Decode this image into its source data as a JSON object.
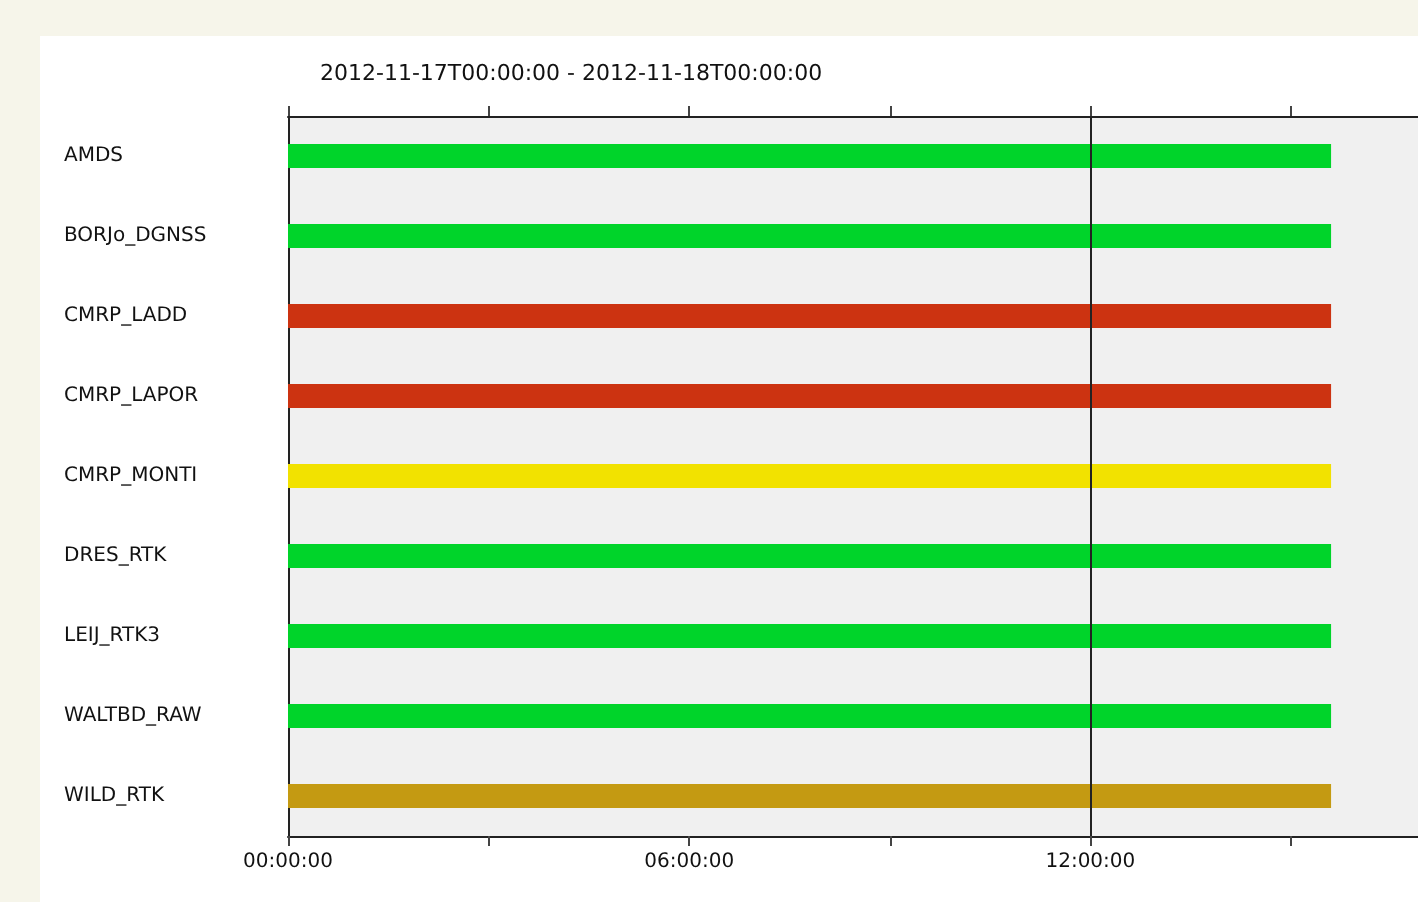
{
  "chart_data": {
    "type": "bar",
    "orientation": "horizontal",
    "title": "2012-11-17T00:00:00 - 2012-11-18T00:00:00",
    "categories": [
      "AMDS",
      "BORJo_DGNSS",
      "CMRP_LADD",
      "CMRP_LAPOR",
      "CMRP_MONTI",
      "DRES_RTK",
      "LEIJ_RTK3",
      "WALTBD_RAW",
      "WILD_RTK"
    ],
    "base": [
      0,
      0,
      0,
      0,
      0,
      0,
      0,
      0,
      0
    ],
    "values": [
      15.6,
      15.6,
      15.6,
      15.6,
      15.6,
      15.6,
      15.6,
      15.6,
      15.6
    ],
    "colors": [
      "#00d42a",
      "#00d42a",
      "#cc3311",
      "#cc3311",
      "#f2e200",
      "#00d42a",
      "#00d42a",
      "#00d42a",
      "#c49a12"
    ],
    "xlim": [
      0,
      16.9
    ],
    "xticks": [
      {
        "value": 0,
        "label": "00:00:00"
      },
      {
        "value": 3,
        "label": null
      },
      {
        "value": 6,
        "label": "06:00:00"
      },
      {
        "value": 9,
        "label": null
      },
      {
        "value": 12,
        "label": "12:00:00"
      },
      {
        "value": 15,
        "label": null
      }
    ],
    "ref_lines": [
      {
        "axis": "x",
        "value": 12,
        "label": null,
        "color": "#222222"
      }
    ]
  }
}
